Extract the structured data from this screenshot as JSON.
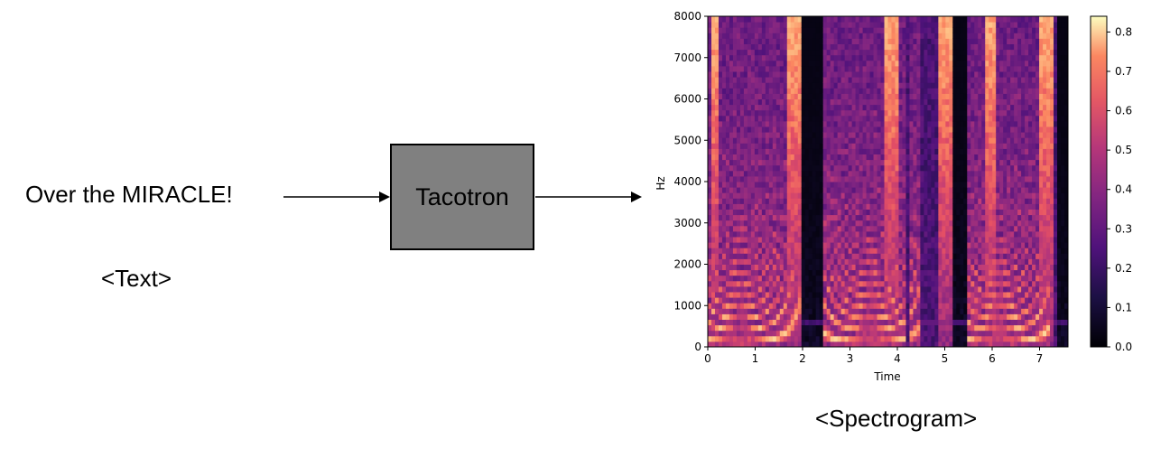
{
  "input": {
    "text": "Over the MIRACLE!",
    "caption": "<Text>"
  },
  "model": {
    "label": "Tacotron"
  },
  "output": {
    "caption": "<Spectrogram>"
  },
  "spectrogram": {
    "xlabel": "Time",
    "ylabel": "Hz",
    "x_ticks": [
      "0",
      "1",
      "2",
      "3",
      "4",
      "5",
      "6",
      "7"
    ],
    "y_ticks": [
      "0",
      "1000",
      "2000",
      "3000",
      "4000",
      "5000",
      "6000",
      "7000",
      "8000"
    ],
    "xlim": [
      0,
      7.6
    ],
    "ylim": [
      0,
      8000
    ],
    "colorbar_ticks": [
      "0.0",
      "0.1",
      "0.2",
      "0.3",
      "0.4",
      "0.5",
      "0.6",
      "0.7",
      "0.8"
    ],
    "colorbar_range": [
      0,
      0.84
    ],
    "colormap": "magma",
    "colors": {
      "low": "#000004",
      "mid": "#b73779",
      "high": "#fcfdbf"
    }
  }
}
